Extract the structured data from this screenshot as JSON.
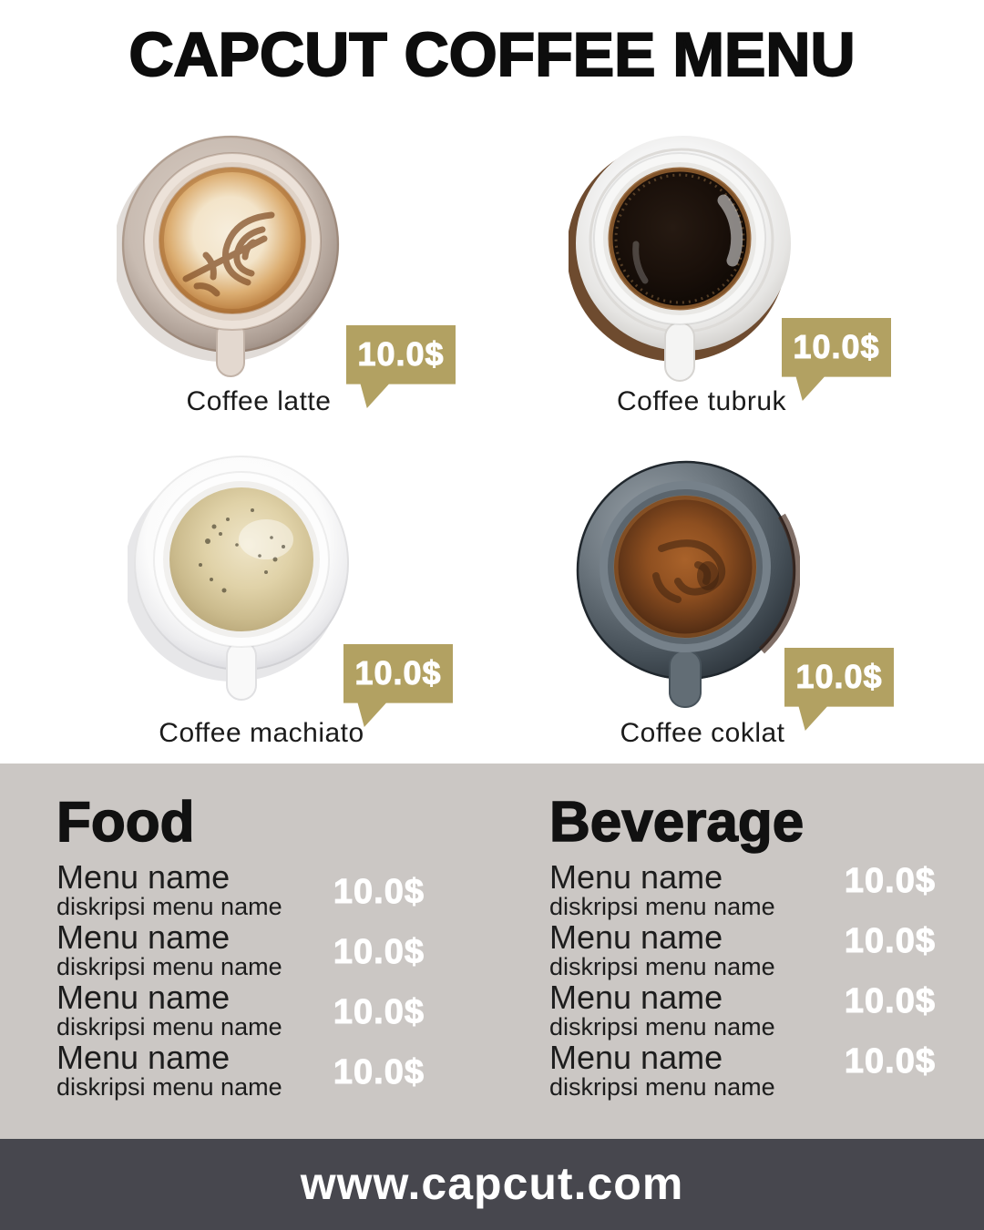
{
  "title": "CAPCUT COFFEE MENU",
  "products": [
    {
      "name": "Coffee latte",
      "price": "10.0$"
    },
    {
      "name": "Coffee tubruk",
      "price": "10.0$"
    },
    {
      "name": "Coffee machiato",
      "price": "10.0$"
    },
    {
      "name": "Coffee coklat",
      "price": "10.0$"
    }
  ],
  "sections": [
    {
      "heading": "Food",
      "items": [
        {
          "name": "Menu name",
          "desc": "diskripsi menu name",
          "price": "10.0$"
        },
        {
          "name": "Menu name",
          "desc": "diskripsi menu name",
          "price": "10.0$"
        },
        {
          "name": "Menu name",
          "desc": "diskripsi menu name",
          "price": "10.0$"
        },
        {
          "name": "Menu name",
          "desc": "diskripsi menu name",
          "price": "10.0$"
        }
      ]
    },
    {
      "heading": "Beverage",
      "items": [
        {
          "name": "Menu name",
          "desc": "diskripsi menu name",
          "price": "10.0$"
        },
        {
          "name": "Menu name",
          "desc": "diskripsi menu name",
          "price": "10.0$"
        },
        {
          "name": "Menu name",
          "desc": "diskripsi menu name",
          "price": "10.0$"
        },
        {
          "name": "Menu name",
          "desc": "diskripsi menu name",
          "price": "10.0$"
        }
      ]
    }
  ],
  "footer": {
    "website": "www.capcut.com"
  },
  "colors": {
    "accent_gold": "#b2a162",
    "panel_gray": "#cbc7c4",
    "footer_gray": "#47474e",
    "title_black": "#0d0d0d",
    "price_white": "#ffffff"
  }
}
